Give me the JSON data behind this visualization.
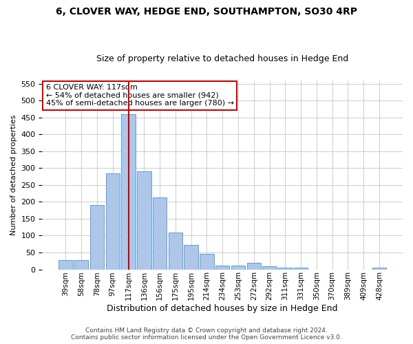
{
  "title": "6, CLOVER WAY, HEDGE END, SOUTHAMPTON, SO30 4RP",
  "subtitle": "Size of property relative to detached houses in Hedge End",
  "xlabel": "Distribution of detached houses by size in Hedge End",
  "ylabel": "Number of detached properties",
  "categories": [
    "39sqm",
    "58sqm",
    "78sqm",
    "97sqm",
    "117sqm",
    "136sqm",
    "156sqm",
    "175sqm",
    "195sqm",
    "214sqm",
    "234sqm",
    "253sqm",
    "272sqm",
    "292sqm",
    "311sqm",
    "331sqm",
    "350sqm",
    "370sqm",
    "389sqm",
    "409sqm",
    "428sqm"
  ],
  "values": [
    28,
    28,
    190,
    285,
    460,
    290,
    213,
    110,
    73,
    45,
    12,
    12,
    20,
    10,
    5,
    5,
    0,
    0,
    0,
    0,
    5
  ],
  "bar_color": "#aec6e8",
  "bar_edge_color": "#5a9fd4",
  "highlight_index": 4,
  "vline_color": "#cc0000",
  "ylim": [
    0,
    560
  ],
  "yticks": [
    0,
    50,
    100,
    150,
    200,
    250,
    300,
    350,
    400,
    450,
    500,
    550
  ],
  "annotation_text": "6 CLOVER WAY: 117sqm\n← 54% of detached houses are smaller (942)\n45% of semi-detached houses are larger (780) →",
  "annotation_box_color": "#ffffff",
  "annotation_box_edge": "#cc0000",
  "footer_line1": "Contains HM Land Registry data © Crown copyright and database right 2024.",
  "footer_line2": "Contains public sector information licensed under the Open Government Licence v3.0.",
  "background_color": "#ffffff",
  "grid_color": "#cccccc",
  "title_fontsize": 10,
  "subtitle_fontsize": 9,
  "xlabel_fontsize": 9,
  "ylabel_fontsize": 8,
  "tick_fontsize": 8,
  "xtick_fontsize": 7.5,
  "footer_fontsize": 6.5,
  "annotation_fontsize": 8
}
